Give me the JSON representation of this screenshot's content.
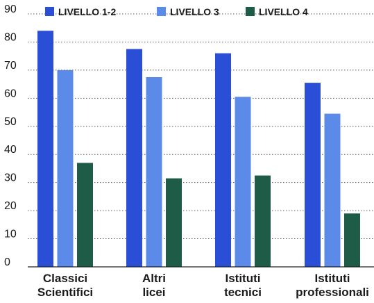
{
  "chart_data": {
    "type": "bar",
    "categories": [
      [
        "Classici",
        "Scientifici"
      ],
      [
        "Altri",
        "licei"
      ],
      [
        "Istituti",
        "tecnici"
      ],
      [
        "Istituti",
        "professionali"
      ]
    ],
    "series": [
      {
        "name": "LIVELLO 1-2",
        "color": "#2a4fd6",
        "values": [
          84,
          77.5,
          76,
          65.5
        ]
      },
      {
        "name": "LIVELLO 3",
        "color": "#5b8ae8",
        "values": [
          70,
          67.5,
          60.5,
          54.5
        ]
      },
      {
        "name": "LIVELLO 4",
        "color": "#1f5c48",
        "values": [
          37,
          31.5,
          32.5,
          19
        ]
      }
    ],
    "yticks": [
      0,
      10,
      20,
      30,
      40,
      50,
      60,
      70,
      80,
      90
    ],
    "ylim": [
      0,
      90
    ],
    "grid": true,
    "legend": "top",
    "title": "",
    "xlabel": "",
    "ylabel": ""
  }
}
